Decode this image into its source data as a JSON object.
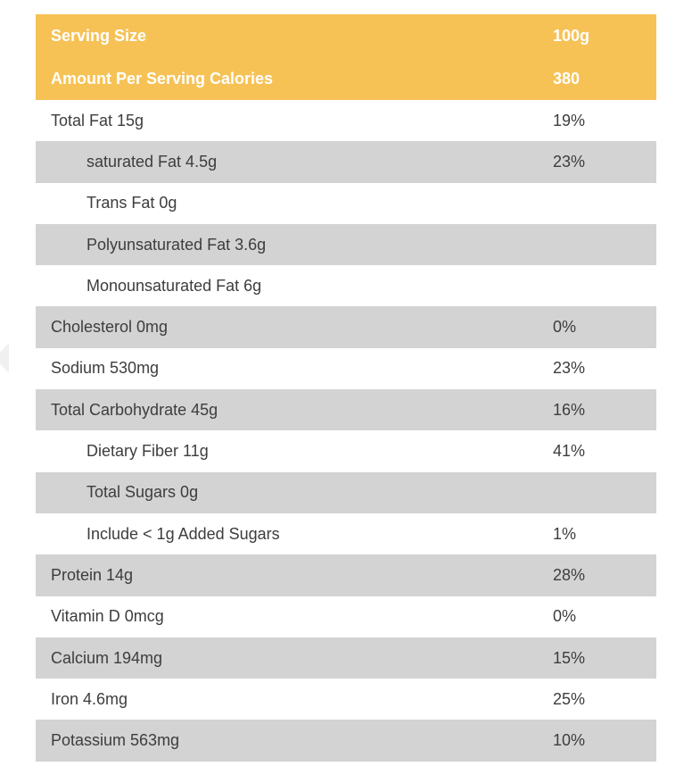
{
  "header": {
    "rows": [
      {
        "label": "Serving Size",
        "value": "100g"
      },
      {
        "label": "Amount Per Serving Calories",
        "value": "380"
      }
    ]
  },
  "table": {
    "rows": [
      {
        "label": "Total Fat 15g",
        "dv": "19%",
        "indent": false,
        "shaded": false
      },
      {
        "label": "saturated Fat 4.5g",
        "dv": "23%",
        "indent": true,
        "shaded": true
      },
      {
        "label": "Trans Fat 0g",
        "dv": "",
        "indent": true,
        "shaded": false
      },
      {
        "label": "Polyunsaturated Fat 3.6g",
        "dv": "",
        "indent": true,
        "shaded": true
      },
      {
        "label": "Monounsaturated Fat 6g",
        "dv": "",
        "indent": true,
        "shaded": false
      },
      {
        "label": "Cholesterol 0mg",
        "dv": "0%",
        "indent": false,
        "shaded": true
      },
      {
        "label": "Sodium 530mg",
        "dv": "23%",
        "indent": false,
        "shaded": false
      },
      {
        "label": "Total Carbohydrate 45g",
        "dv": "16%",
        "indent": false,
        "shaded": true
      },
      {
        "label": "Dietary Fiber 11g",
        "dv": "41%",
        "indent": true,
        "shaded": false
      },
      {
        "label": "Total Sugars 0g",
        "dv": "",
        "indent": true,
        "shaded": true
      },
      {
        "label": "Include < 1g Added Sugars",
        "dv": "1%",
        "indent": true,
        "shaded": false
      },
      {
        "label": "Protein 14g",
        "dv": "28%",
        "indent": false,
        "shaded": true
      },
      {
        "label": "Vitamin D 0mcg",
        "dv": "0%",
        "indent": false,
        "shaded": false
      },
      {
        "label": "Calcium 194mg",
        "dv": "15%",
        "indent": false,
        "shaded": true
      },
      {
        "label": "Iron 4.6mg",
        "dv": "25%",
        "indent": false,
        "shaded": false
      },
      {
        "label": "Potassium 563mg",
        "dv": "10%",
        "indent": false,
        "shaded": true
      }
    ]
  },
  "colors": {
    "header_bg": "#F6C256",
    "header_text": "#FFFFFF",
    "row_shaded_bg": "#D3D3D3",
    "row_text": "#3D3D3F",
    "page_bg": "#FFFFFF"
  }
}
